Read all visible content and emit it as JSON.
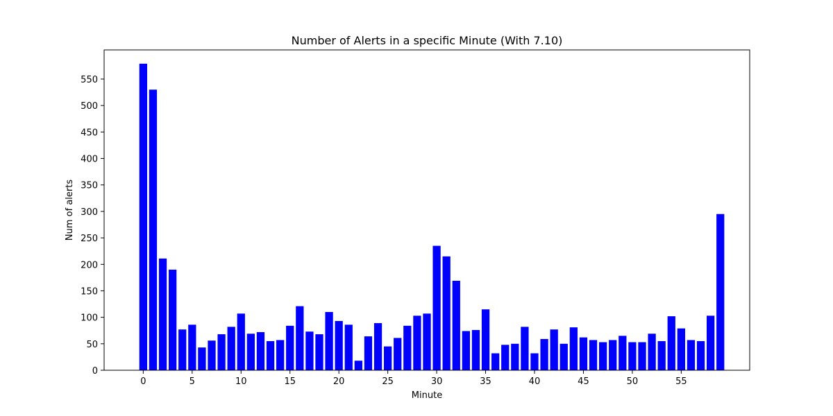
{
  "chart_data": {
    "type": "bar",
    "title": "Number of Alerts in a specific Minute (With 7.10)",
    "xlabel": "Minute",
    "ylabel": "Num of alerts",
    "bar_color": "#0000ff",
    "xlim": [
      -4,
      62
    ],
    "ylim": [
      0,
      605
    ],
    "xticks": [
      0,
      5,
      10,
      15,
      20,
      25,
      30,
      35,
      40,
      45,
      50,
      55
    ],
    "yticks": [
      0,
      50,
      100,
      150,
      200,
      250,
      300,
      350,
      400,
      450,
      500,
      550
    ],
    "grid": false,
    "x": [
      0,
      1,
      2,
      3,
      4,
      5,
      6,
      7,
      8,
      9,
      10,
      11,
      12,
      13,
      14,
      15,
      16,
      17,
      18,
      19,
      20,
      21,
      22,
      23,
      24,
      25,
      26,
      27,
      28,
      29,
      30,
      31,
      32,
      33,
      34,
      35,
      36,
      37,
      38,
      39,
      40,
      41,
      42,
      43,
      44,
      45,
      46,
      47,
      48,
      49,
      50,
      51,
      52,
      53,
      54,
      55,
      56,
      57,
      58,
      59
    ],
    "values": [
      579,
      530,
      211,
      190,
      77,
      86,
      43,
      56,
      68,
      82,
      107,
      69,
      72,
      55,
      57,
      84,
      121,
      73,
      68,
      110,
      93,
      86,
      18,
      64,
      89,
      45,
      61,
      84,
      103,
      107,
      235,
      215,
      169,
      74,
      76,
      115,
      32,
      48,
      50,
      82,
      32,
      59,
      77,
      50,
      81,
      62,
      57,
      53,
      57,
      65,
      53,
      53,
      69,
      55,
      102,
      79,
      57,
      55,
      103,
      295
    ]
  }
}
